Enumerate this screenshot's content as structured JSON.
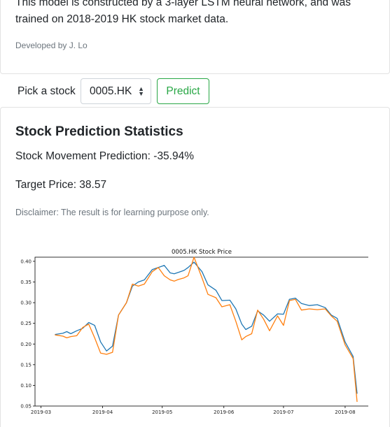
{
  "intro": {
    "description": "This model is constructed by a 3-layer LSTM neural network, and was trained on 2018-2019 HK stock market data.",
    "developer": "Developed by J. Lo"
  },
  "controls": {
    "pick_label": "Pick a stock",
    "selected_stock": "0005.HK",
    "predict_label": "Predict"
  },
  "stats": {
    "title": "Stock Prediction Statistics",
    "movement": "Stock Movement Prediction: -35.94%",
    "target": "Target Price: 38.57",
    "disclaimer": "Disclaimer: The result is for learning purpose only."
  },
  "colors": {
    "accent": "#28a745",
    "series_1": "#1f77b4",
    "series_2": "#ff7f0e"
  },
  "chart_data": {
    "type": "line",
    "title": "0005.HK Stock Price",
    "xlabel": "",
    "ylabel": "",
    "ylim": [
      0.05,
      0.41
    ],
    "yticks": [
      0.05,
      0.1,
      0.15,
      0.2,
      0.25,
      0.3,
      0.35,
      0.4
    ],
    "ytick_labels": [
      "0.05",
      "0.10",
      "0.15",
      "0.20",
      "0.25",
      "0.30",
      "0.35",
      "0.40"
    ],
    "xticks": [
      "2019-03-01",
      "2019-04-01",
      "2019-05-01",
      "2019-06-01",
      "2019-07-01",
      "2019-08-01"
    ],
    "xtick_labels": [
      "2019-03",
      "2019-04",
      "2019-05",
      "2019-06",
      "2019-07",
      "2019-08"
    ],
    "grid": false,
    "series": [
      {
        "x": [
          "2019-03-08",
          "2019-03-12",
          "2019-03-14",
          "2019-03-16",
          "2019-03-19",
          "2019-03-22",
          "2019-03-25",
          "2019-03-28",
          "2019-03-31",
          "2019-04-03",
          "2019-04-06",
          "2019-04-09",
          "2019-04-13",
          "2019-04-16",
          "2019-04-19",
          "2019-04-22",
          "2019-04-26",
          "2019-04-29",
          "2019-05-02",
          "2019-05-05",
          "2019-05-07",
          "2019-05-09",
          "2019-05-12",
          "2019-05-14",
          "2019-05-17",
          "2019-05-21",
          "2019-05-24",
          "2019-05-28",
          "2019-05-31",
          "2019-06-04",
          "2019-06-07",
          "2019-06-10",
          "2019-06-12",
          "2019-06-15",
          "2019-06-18",
          "2019-06-21",
          "2019-06-24",
          "2019-06-28",
          "2019-07-01",
          "2019-07-04",
          "2019-07-07",
          "2019-07-10",
          "2019-07-14",
          "2019-07-18",
          "2019-07-22",
          "2019-07-25",
          "2019-07-28",
          "2019-08-01",
          "2019-08-05",
          "2019-08-07"
        ],
        "values": [
          0.223,
          0.226,
          0.23,
          0.225,
          0.232,
          0.238,
          0.252,
          0.245,
          0.205,
          0.183,
          0.195,
          0.27,
          0.3,
          0.34,
          0.35,
          0.355,
          0.38,
          0.385,
          0.39,
          0.372,
          0.37,
          0.373,
          0.378,
          0.385,
          0.398,
          0.375,
          0.343,
          0.33,
          0.305,
          0.306,
          0.285,
          0.248,
          0.235,
          0.243,
          0.28,
          0.27,
          0.255,
          0.273,
          0.272,
          0.308,
          0.311,
          0.298,
          0.293,
          0.295,
          0.288,
          0.27,
          0.262,
          0.205,
          0.17,
          0.08
        ]
      },
      {
        "x": [
          "2019-03-08",
          "2019-03-12",
          "2019-03-14",
          "2019-03-16",
          "2019-03-19",
          "2019-03-22",
          "2019-03-25",
          "2019-03-28",
          "2019-03-31",
          "2019-04-03",
          "2019-04-06",
          "2019-04-09",
          "2019-04-13",
          "2019-04-16",
          "2019-04-19",
          "2019-04-22",
          "2019-04-26",
          "2019-04-29",
          "2019-05-02",
          "2019-05-05",
          "2019-05-07",
          "2019-05-09",
          "2019-05-12",
          "2019-05-14",
          "2019-05-17",
          "2019-05-21",
          "2019-05-24",
          "2019-05-28",
          "2019-05-31",
          "2019-06-04",
          "2019-06-07",
          "2019-06-10",
          "2019-06-12",
          "2019-06-15",
          "2019-06-18",
          "2019-06-21",
          "2019-06-24",
          "2019-06-28",
          "2019-07-01",
          "2019-07-04",
          "2019-07-07",
          "2019-07-10",
          "2019-07-14",
          "2019-07-18",
          "2019-07-22",
          "2019-07-25",
          "2019-07-28",
          "2019-08-01",
          "2019-08-05",
          "2019-08-07"
        ],
        "values": [
          0.222,
          0.219,
          0.215,
          0.218,
          0.22,
          0.24,
          0.248,
          0.215,
          0.178,
          0.175,
          0.18,
          0.27,
          0.3,
          0.345,
          0.34,
          0.345,
          0.375,
          0.385,
          0.365,
          0.355,
          0.352,
          0.356,
          0.36,
          0.365,
          0.41,
          0.36,
          0.32,
          0.312,
          0.29,
          0.295,
          0.255,
          0.21,
          0.218,
          0.225,
          0.282,
          0.26,
          0.232,
          0.268,
          0.245,
          0.305,
          0.308,
          0.282,
          0.285,
          0.283,
          0.285,
          0.268,
          0.255,
          0.198,
          0.165,
          0.06
        ]
      }
    ]
  }
}
